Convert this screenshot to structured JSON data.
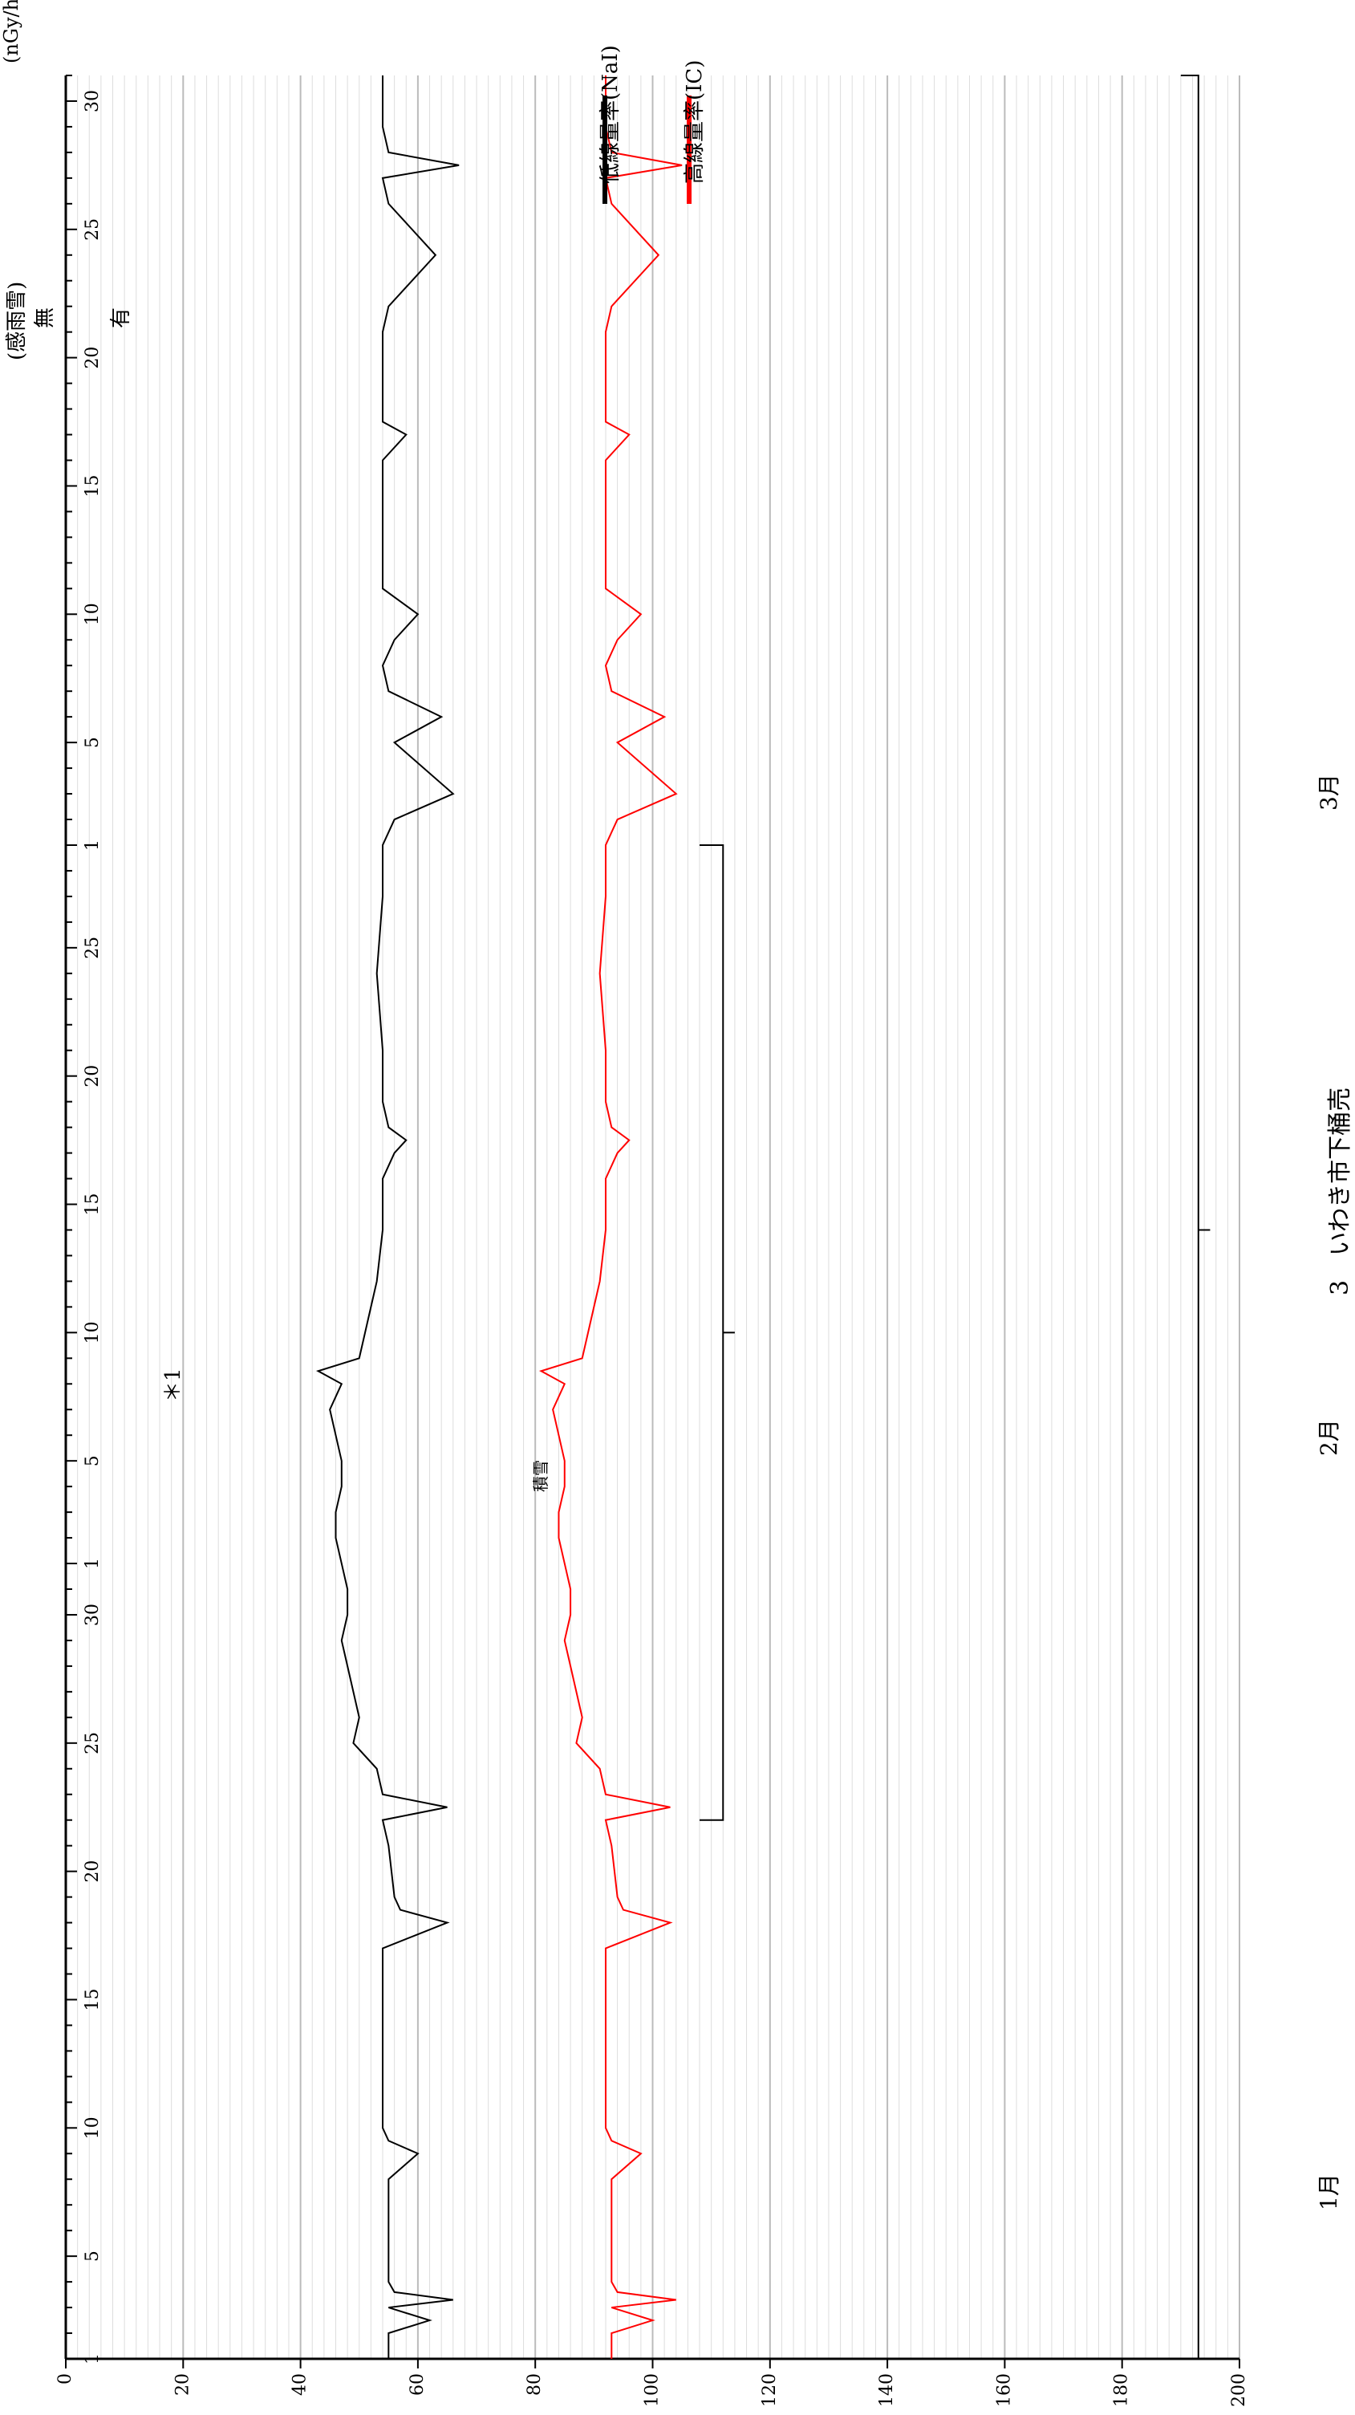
{
  "page": {
    "title": "3　いわき市下桶売",
    "unit_label": "(nGy/h)",
    "rain_label": "(感雨雪)",
    "rain_none": "無",
    "rain_yes": "有",
    "note_star": "＊1",
    "note_snow": "積雪"
  },
  "legend": {
    "items": [
      {
        "label": "低線量率(NaI)",
        "color": "#000000"
      },
      {
        "label": "高線量率(IC)",
        "color": "#ff0000"
      }
    ]
  },
  "chart_data": {
    "type": "line",
    "title": "3　いわき市下桶売",
    "ylabel": "(nGy/h)",
    "ylim": [
      0,
      200
    ],
    "yticks": [
      0,
      20,
      40,
      60,
      80,
      100,
      120,
      140,
      160,
      180,
      200
    ],
    "grid": true,
    "months": [
      {
        "label": "1月",
        "days": 31
      },
      {
        "label": "2月",
        "days": 28
      },
      {
        "label": "3月",
        "days": 31
      }
    ],
    "xtick_labels": [
      "1",
      "5",
      "10",
      "15",
      "20",
      "25",
      "30",
      "1",
      "5",
      "10",
      "15",
      "20",
      "25",
      "1",
      "5",
      "10",
      "15",
      "20",
      "25",
      "30"
    ],
    "series": [
      {
        "name": "低線量率(NaI)",
        "color": "#000000",
        "x": [
          1,
          2,
          2.5,
          3,
          3.3,
          3.6,
          4,
          6,
          8,
          9,
          9.5,
          10,
          11,
          13,
          15,
          17,
          18,
          18.5,
          19,
          21,
          22,
          22.5,
          23,
          24,
          25,
          26,
          27,
          28,
          29,
          30,
          31,
          32,
          33,
          34,
          35,
          36,
          37,
          38,
          39,
          39.5,
          40,
          41,
          42,
          43,
          45,
          47,
          48,
          48.5,
          49,
          50,
          52,
          55,
          58,
          60,
          61,
          62,
          64,
          65,
          66,
          67,
          68,
          69,
          69.5,
          70,
          72,
          75,
          76,
          76.5,
          77,
          78,
          80,
          81,
          83,
          85,
          86,
          86.5,
          87,
          88,
          90
        ],
        "y": [
          55,
          55,
          62,
          55,
          66,
          56,
          55,
          55,
          55,
          60,
          55,
          54,
          54,
          54,
          54,
          54,
          65,
          57,
          56,
          55,
          54,
          65,
          54,
          53,
          49,
          50,
          49,
          48,
          47,
          48,
          48,
          47,
          46,
          46,
          47,
          47,
          46,
          45,
          47,
          43,
          50,
          51,
          52,
          53,
          54,
          54,
          56,
          58,
          55,
          54,
          54,
          53,
          54,
          54,
          56,
          66,
          56,
          64,
          55,
          54,
          56,
          60,
          57,
          54,
          54,
          54,
          58,
          54,
          54,
          54,
          54,
          55,
          63,
          55,
          54,
          67,
          55,
          54,
          54
        ],
        "values_note": ""
      },
      {
        "name": "高線量率(IC)",
        "color": "#ff0000",
        "x": [
          1,
          2,
          2.5,
          3,
          3.3,
          3.6,
          4,
          6,
          8,
          9,
          9.5,
          10,
          11,
          13,
          15,
          17,
          18,
          18.5,
          19,
          21,
          22,
          22.5,
          23,
          24,
          25,
          26,
          27,
          28,
          29,
          30,
          31,
          32,
          33,
          34,
          35,
          36,
          37,
          38,
          39,
          39.5,
          40,
          41,
          42,
          43,
          45,
          47,
          48,
          48.5,
          49,
          50,
          52,
          55,
          58,
          60,
          61,
          62,
          64,
          65,
          66,
          67,
          68,
          69,
          69.5,
          70,
          72,
          75,
          76,
          76.5,
          77,
          78,
          80,
          81,
          83,
          85,
          86,
          86.5,
          87,
          88,
          90
        ],
        "y": [
          93,
          93,
          100,
          93,
          104,
          94,
          93,
          93,
          93,
          98,
          93,
          92,
          92,
          92,
          92,
          92,
          103,
          95,
          94,
          93,
          92,
          103,
          92,
          91,
          87,
          88,
          87,
          86,
          85,
          86,
          86,
          85,
          84,
          84,
          85,
          85,
          84,
          83,
          85,
          81,
          88,
          89,
          90,
          91,
          92,
          92,
          94,
          96,
          93,
          92,
          92,
          91,
          92,
          92,
          94,
          104,
          94,
          102,
          93,
          92,
          94,
          98,
          95,
          92,
          92,
          92,
          96,
          92,
          92,
          92,
          92,
          93,
          101,
          93,
          92,
          105,
          93,
          92,
          92
        ]
      }
    ],
    "annotations": [
      {
        "text": "＊1",
        "x_from": 1,
        "x_to": 90
      },
      {
        "text": "積雪",
        "x_from": 22,
        "x_to": 60
      }
    ]
  }
}
